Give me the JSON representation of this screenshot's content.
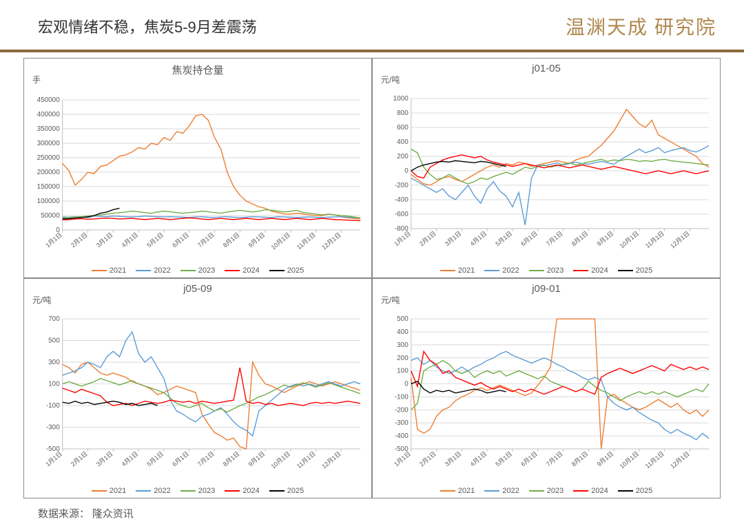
{
  "page": {
    "title": "宏观情绪不稳，焦炭5-9月差震荡",
    "logo_text": "温渊天成 研究院",
    "source_label": "数据来源：",
    "source_value": "隆众资讯"
  },
  "series_colors": {
    "2021": "#ed7d31",
    "2022": "#5b9bd5",
    "2023": "#70ad47",
    "2024": "#ff0000",
    "2025": "#000000"
  },
  "legend_labels": [
    "2021",
    "2022",
    "2023",
    "2024",
    "2025"
  ],
  "x_categories": [
    "1月1日",
    "2月1日",
    "3月1日",
    "4月1日",
    "5月1日",
    "6月1日",
    "7月1日",
    "8月1日",
    "9月1日",
    "10月1日",
    "11月1日",
    "12月1日"
  ],
  "charts": [
    {
      "id": "open-interest",
      "title": "焦炭持仓量",
      "y_unit": "手",
      "ylim": [
        0,
        450000
      ],
      "ytick_step": 50000,
      "y_axis_fmt": "int",
      "series": {
        "2021": [
          230000,
          205000,
          155000,
          175000,
          200000,
          195000,
          220000,
          225000,
          240000,
          255000,
          260000,
          270000,
          285000,
          280000,
          300000,
          295000,
          320000,
          310000,
          340000,
          335000,
          360000,
          395000,
          400000,
          380000,
          320000,
          280000,
          200000,
          150000,
          120000,
          100000,
          90000,
          80000,
          75000,
          65000,
          60000,
          55000,
          55000,
          58000,
          55000,
          52000,
          50000,
          50000,
          55000,
          52000,
          45000,
          42000,
          40000,
          38000
        ],
        "2022": [
          45000,
          44000,
          46000,
          45000,
          43000,
          48000,
          47000,
          46000,
          48000,
          47000,
          46000,
          45000,
          46000,
          48000,
          47000,
          46000,
          45000,
          46000,
          45000,
          44000,
          43000,
          45000,
          46000,
          44000,
          43000,
          45000,
          46000,
          44000,
          43000,
          44000,
          46000,
          45000,
          44000,
          43000,
          46000,
          45000,
          44000,
          43000,
          44000,
          45000,
          44000,
          43000,
          44000,
          45000,
          46000,
          44000,
          43000,
          42000
        ],
        "2023": [
          42000,
          43000,
          45000,
          46000,
          48000,
          50000,
          52000,
          55000,
          58000,
          60000,
          62000,
          65000,
          63000,
          60000,
          58000,
          62000,
          65000,
          63000,
          60000,
          58000,
          60000,
          62000,
          65000,
          63000,
          60000,
          58000,
          62000,
          65000,
          68000,
          65000,
          62000,
          65000,
          70000,
          68000,
          65000,
          62000,
          65000,
          68000,
          60000,
          58000,
          55000,
          52000,
          55000,
          52000,
          50000,
          48000,
          45000,
          42000
        ],
        "2024": [
          35000,
          36000,
          38000,
          39000,
          37000,
          38000,
          40000,
          41000,
          40000,
          38000,
          39000,
          40000,
          38000,
          36000,
          38000,
          40000,
          38000,
          36000,
          38000,
          40000,
          42000,
          40000,
          38000,
          36000,
          38000,
          40000,
          38000,
          36000,
          38000,
          40000,
          38000,
          36000,
          38000,
          40000,
          38000,
          36000,
          38000,
          40000,
          38000,
          36000,
          38000,
          40000,
          38000,
          36000,
          35000,
          34000,
          33000,
          32000
        ],
        "2025": [
          38000,
          39000,
          41000,
          43000,
          45000,
          50000,
          58000,
          62000,
          70000,
          75000
        ]
      }
    },
    {
      "id": "j01-05",
      "title": "j01-05",
      "y_unit": "元/吨",
      "ylim": [
        -800,
        1000
      ],
      "ytick_step": 200,
      "y_axis_fmt": "int",
      "series": {
        "2021": [
          -50,
          -120,
          -180,
          -200,
          -150,
          -100,
          -80,
          -120,
          -150,
          -100,
          -50,
          0,
          50,
          80,
          50,
          100,
          80,
          120,
          100,
          60,
          80,
          100,
          120,
          140,
          120,
          100,
          150,
          180,
          200,
          280,
          350,
          450,
          550,
          700,
          850,
          750,
          650,
          600,
          700,
          500,
          450,
          400,
          350,
          300,
          250,
          200,
          100,
          50
        ],
        "2022": [
          -100,
          -150,
          -200,
          -250,
          -300,
          -250,
          -350,
          -400,
          -300,
          -200,
          -350,
          -450,
          -250,
          -150,
          -280,
          -350,
          -500,
          -300,
          -750,
          -100,
          80,
          70,
          90,
          110,
          80,
          100,
          120,
          100,
          90,
          110,
          130,
          110,
          90,
          150,
          200,
          250,
          300,
          250,
          280,
          320,
          250,
          280,
          300,
          320,
          280,
          260,
          300,
          350
        ],
        "2023": [
          300,
          250,
          50,
          -50,
          -120,
          -100,
          -50,
          -100,
          -150,
          -180,
          -150,
          -100,
          -120,
          -80,
          -50,
          -20,
          -50,
          0,
          50,
          30,
          60,
          80,
          50,
          70,
          90,
          110,
          80,
          100,
          120,
          140,
          160,
          130,
          150,
          140,
          160,
          150,
          130,
          140,
          130,
          150,
          160,
          140,
          130,
          120,
          110,
          100,
          90,
          80
        ],
        "2024": [
          0,
          -80,
          -100,
          50,
          100,
          150,
          180,
          200,
          220,
          200,
          180,
          200,
          150,
          120,
          100,
          80,
          60,
          80,
          100,
          80,
          60,
          40,
          60,
          80,
          60,
          40,
          60,
          80,
          60,
          40,
          20,
          40,
          60,
          40,
          20,
          0,
          -20,
          -40,
          -20,
          0,
          -20,
          -40,
          -20,
          0,
          -20,
          -40,
          -20,
          0
        ],
        "2025": [
          0,
          50,
          80,
          100,
          120,
          130,
          120,
          140,
          130,
          120,
          110,
          130,
          120,
          100,
          80,
          60
        ]
      }
    },
    {
      "id": "j05-09",
      "title": "j05-09",
      "y_unit": "元/吨",
      "ylim": [
        -500,
        700
      ],
      "ytick_step": 200,
      "y_axis_fmt": "int",
      "series": {
        "2021": [
          280,
          250,
          200,
          280,
          300,
          250,
          200,
          180,
          200,
          180,
          160,
          120,
          100,
          80,
          50,
          0,
          20,
          50,
          80,
          60,
          40,
          20,
          -180,
          -270,
          -350,
          -380,
          -420,
          -400,
          -480,
          -500,
          300,
          180,
          100,
          80,
          50,
          20,
          50,
          80,
          100,
          120,
          100,
          80,
          100,
          120,
          100,
          80,
          60,
          40
        ],
        "2022": [
          180,
          200,
          220,
          250,
          300,
          280,
          250,
          350,
          400,
          350,
          500,
          580,
          380,
          300,
          350,
          250,
          150,
          -50,
          -150,
          -180,
          -220,
          -250,
          -200,
          -180,
          -150,
          -120,
          -180,
          -250,
          -300,
          -330,
          -380,
          -150,
          -100,
          -50,
          0,
          50,
          80,
          100,
          80,
          100,
          80,
          100,
          120,
          100,
          80,
          100,
          120,
          100
        ],
        "2023": [
          100,
          120,
          100,
          80,
          100,
          120,
          150,
          130,
          110,
          90,
          110,
          130,
          100,
          80,
          60,
          40,
          20,
          -30,
          -80,
          -100,
          -120,
          -100,
          -80,
          -120,
          -150,
          -130,
          -160,
          -130,
          -100,
          -80,
          -50,
          -20,
          0,
          30,
          60,
          90,
          70,
          90,
          110,
          90,
          70,
          90,
          110,
          90,
          70,
          50,
          30,
          10
        ],
        "2024": [
          60,
          40,
          20,
          50,
          30,
          10,
          -10,
          -70,
          -100,
          -90,
          -80,
          -100,
          -80,
          -60,
          -70,
          -80,
          -70,
          -50,
          -60,
          -70,
          -60,
          -80,
          -60,
          -70,
          -80,
          -70,
          -60,
          -50,
          250,
          -60,
          -80,
          -70,
          -90,
          -80,
          -100,
          -90,
          -80,
          -90,
          -100,
          -80,
          -70,
          -80,
          -70,
          -80,
          -70,
          -60,
          -70,
          -80
        ],
        "2025": [
          -70,
          -80,
          -60,
          -80,
          -70,
          -90,
          -80,
          -70,
          -60,
          -70,
          -90,
          -80,
          -100,
          -90,
          -80,
          -100
        ]
      }
    },
    {
      "id": "j09-01",
      "title": "j09-01",
      "y_unit": "元/吨",
      "ylim": [
        -500,
        500
      ],
      "ytick_step": 100,
      "y_axis_fmt": "int",
      "series": {
        "2021": [
          50,
          -350,
          -380,
          -350,
          -250,
          -200,
          -180,
          -130,
          -100,
          -80,
          -50,
          -30,
          -50,
          -30,
          -10,
          -30,
          -50,
          -70,
          -90,
          -70,
          -10,
          50,
          130,
          500,
          500,
          500,
          500,
          500,
          500,
          500,
          -500,
          -100,
          -80,
          -120,
          -150,
          -180,
          -200,
          -180,
          -150,
          -120,
          -150,
          -180,
          -150,
          -200,
          -230,
          -200,
          -250,
          -200
        ],
        "2022": [
          180,
          200,
          150,
          180,
          130,
          100,
          80,
          100,
          130,
          100,
          130,
          150,
          180,
          200,
          230,
          250,
          220,
          200,
          180,
          160,
          180,
          200,
          180,
          150,
          130,
          100,
          80,
          50,
          30,
          50,
          30,
          -100,
          -150,
          -180,
          -200,
          -180,
          -220,
          -250,
          -280,
          -300,
          -350,
          -380,
          -350,
          -380,
          -400,
          -430,
          -380,
          -420
        ],
        "2023": [
          -200,
          -150,
          100,
          130,
          150,
          180,
          150,
          100,
          80,
          100,
          50,
          80,
          100,
          80,
          100,
          60,
          80,
          100,
          80,
          60,
          40,
          60,
          20,
          0,
          -20,
          -40,
          -60,
          -40,
          20,
          -20,
          -50,
          -70,
          -100,
          -130,
          -100,
          -80,
          -60,
          -80,
          -60,
          -80,
          -60,
          -80,
          -100,
          -80,
          -60,
          -40,
          -60,
          0
        ],
        "2024": [
          100,
          -20,
          250,
          180,
          150,
          80,
          100,
          50,
          30,
          10,
          -10,
          10,
          -20,
          -40,
          -20,
          -40,
          -60,
          -40,
          -60,
          -40,
          -60,
          -80,
          -60,
          -40,
          -20,
          -40,
          -60,
          -40,
          -60,
          -80,
          50,
          80,
          100,
          120,
          100,
          80,
          100,
          120,
          140,
          120,
          100,
          150,
          130,
          110,
          130,
          110,
          130,
          110
        ],
        "2025": [
          0,
          20,
          -40,
          -70,
          -50,
          -60,
          -50,
          -70,
          -60,
          -50,
          -40,
          -50,
          -70,
          -60,
          -50,
          -60
        ]
      }
    }
  ]
}
